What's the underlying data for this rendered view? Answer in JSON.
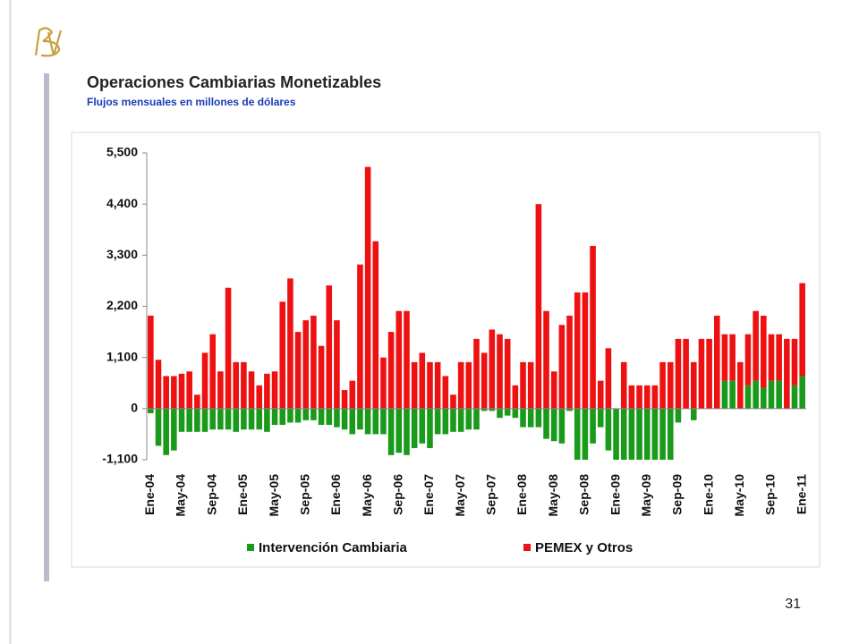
{
  "slide_number": "31",
  "chart_data": {
    "type": "stacked_bar",
    "title": "Operaciones Cambiarias Monetizables",
    "subtitle": "Flujos mensuales en millones de dólares",
    "categories": [
      "Ene-04",
      null,
      null,
      null,
      "May-04",
      null,
      null,
      null,
      "Sep-04",
      null,
      null,
      null,
      "Ene-05",
      null,
      null,
      null,
      "May-05",
      null,
      null,
      null,
      "Sep-05",
      null,
      null,
      null,
      "Ene-06",
      null,
      null,
      null,
      "May-06",
      null,
      null,
      null,
      "Sep-06",
      null,
      null,
      null,
      "Ene-07",
      null,
      null,
      null,
      "May-07",
      null,
      null,
      null,
      "Sep-07",
      null,
      null,
      null,
      "Ene-08",
      null,
      null,
      null,
      "May-08",
      null,
      null,
      null,
      "Sep-08",
      null,
      null,
      null,
      "Ene-09",
      null,
      null,
      null,
      "May-09",
      null,
      null,
      null,
      "Sep-09",
      null,
      null,
      null,
      "Ene-10",
      null,
      null,
      null,
      "May-10",
      null,
      null,
      null,
      "Sep-10",
      null,
      null,
      null,
      "Ene-11"
    ],
    "series": [
      {
        "name": "Intervención Cambiaria",
        "color": "#1a9a1a",
        "values": [
          -100,
          -800,
          -1000,
          -900,
          -500,
          -500,
          -500,
          -500,
          -450,
          -450,
          -450,
          -500,
          -450,
          -450,
          -450,
          -500,
          -350,
          -350,
          -300,
          -300,
          -250,
          -250,
          -350,
          -350,
          -400,
          -450,
          -550,
          -450,
          -550,
          -550,
          -550,
          -1000,
          -950,
          -1000,
          -850,
          -750,
          -850,
          -550,
          -550,
          -500,
          -500,
          -450,
          -450,
          -50,
          -50,
          -200,
          -150,
          -200,
          -400,
          -400,
          -400,
          -650,
          -700,
          -750,
          -50,
          -1100,
          -1100,
          -750,
          -400,
          -900,
          -1100,
          -1100,
          -1100,
          -1100,
          -1100,
          -1100,
          -1100,
          -1100,
          -300,
          0,
          -250,
          0,
          0,
          0,
          600,
          600,
          0,
          500,
          600,
          450,
          600,
          600,
          0,
          500,
          700
        ]
      },
      {
        "name": "PEMEX y Otros",
        "color": "#ee1111",
        "values": [
          2000,
          1050,
          700,
          700,
          750,
          800,
          300,
          1200,
          1600,
          800,
          2600,
          1000,
          1000,
          800,
          500,
          750,
          800,
          2300,
          2800,
          1650,
          1900,
          2000,
          1350,
          2650,
          1900,
          400,
          600,
          3100,
          5200,
          3600,
          1100,
          1650,
          2100,
          2100,
          1000,
          1200,
          1000,
          1000,
          700,
          300,
          1000,
          1000,
          1500,
          1200,
          1700,
          1600,
          1500,
          500,
          1000,
          1000,
          4400,
          2100,
          800,
          1800,
          2000,
          2500,
          2500,
          3500,
          600,
          1300,
          0,
          1000,
          500,
          500,
          500,
          500,
          1000,
          1000,
          1500,
          1500,
          1000,
          1500,
          1500,
          2000,
          1000,
          1000,
          1000,
          1100,
          1500,
          1550,
          1000,
          1000,
          1500,
          1000,
          2000
        ]
      }
    ],
    "ylim": [
      -1100,
      5500
    ],
    "yticks": [
      {
        "value": -1100,
        "label": "-1,100"
      },
      0,
      {
        "value": 1100,
        "label": "1,100"
      },
      {
        "value": 2200,
        "label": "2,200"
      },
      {
        "value": 3300,
        "label": "3,300"
      },
      {
        "value": 4400,
        "label": "4,400"
      },
      {
        "value": 5500,
        "label": "5,500"
      }
    ],
    "legend": "bottom"
  }
}
